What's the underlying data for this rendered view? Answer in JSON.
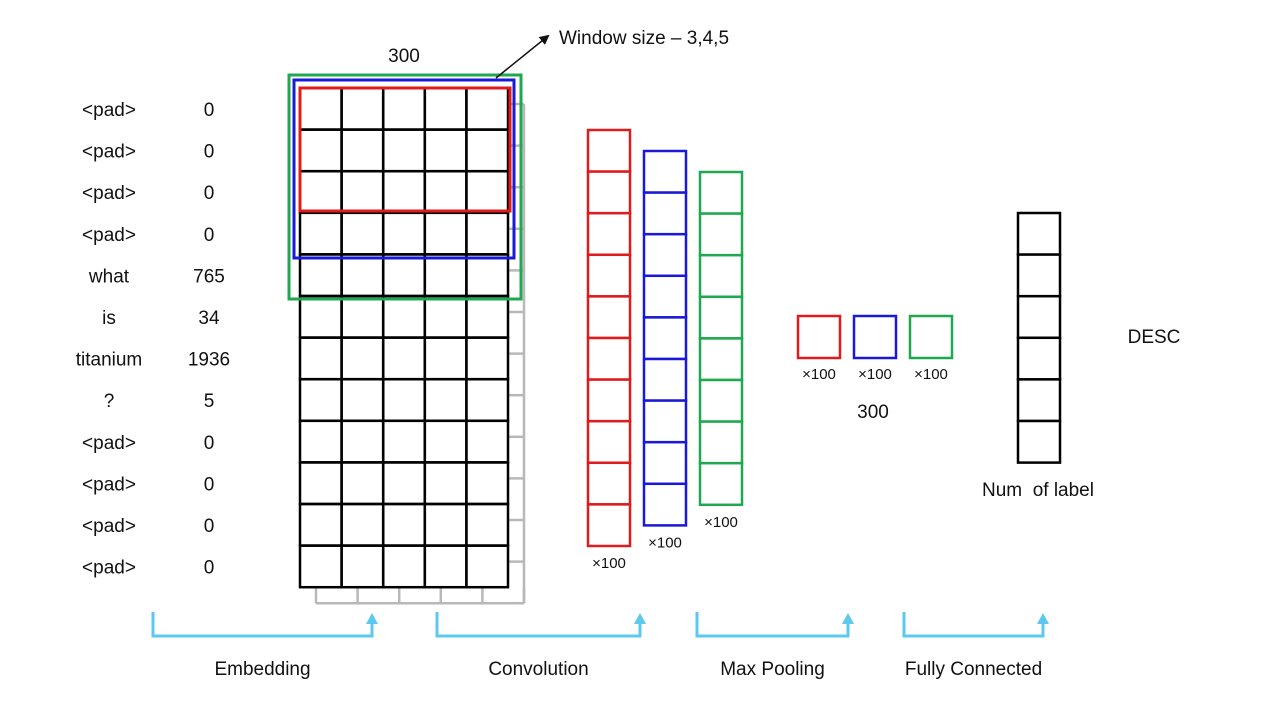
{
  "tokens": [
    {
      "word": "<pad>",
      "id": "0"
    },
    {
      "word": "<pad>",
      "id": "0"
    },
    {
      "word": "<pad>",
      "id": "0"
    },
    {
      "word": "<pad>",
      "id": "0"
    },
    {
      "word": "what",
      "id": "765"
    },
    {
      "word": "is",
      "id": "34"
    },
    {
      "word": "titanium",
      "id": "1936"
    },
    {
      "word": "?",
      "id": "5"
    },
    {
      "word": "<pad>",
      "id": "0"
    },
    {
      "word": "<pad>",
      "id": "0"
    },
    {
      "word": "<pad>",
      "id": "0"
    },
    {
      "word": "<pad>",
      "id": "0"
    }
  ],
  "embedding": {
    "dim_label": "300",
    "window_label": "Window size – 3,4,5"
  },
  "feature_maps": [
    {
      "color": "#e01b1b",
      "cells": 10,
      "label": "×100"
    },
    {
      "color": "#1a1ad6",
      "cells": 9,
      "label": "×100"
    },
    {
      "color": "#1fa84f",
      "cells": 8,
      "label": "×100"
    }
  ],
  "pooled": {
    "labels": [
      "×100",
      "×100",
      "×100"
    ],
    "total_label": "300"
  },
  "output": {
    "cells": 6,
    "label": "Num  of label",
    "class_label": "DESC"
  },
  "stages": [
    "Embedding",
    "Convolution",
    "Max Pooling",
    "Fully Connected"
  ],
  "colors": {
    "red": "#e01b1b",
    "blue": "#1a1ad6",
    "green": "#1fa84f",
    "bracket": "#5bc8ef",
    "back_grid": "#b8b8b8",
    "grid": "#000000"
  }
}
